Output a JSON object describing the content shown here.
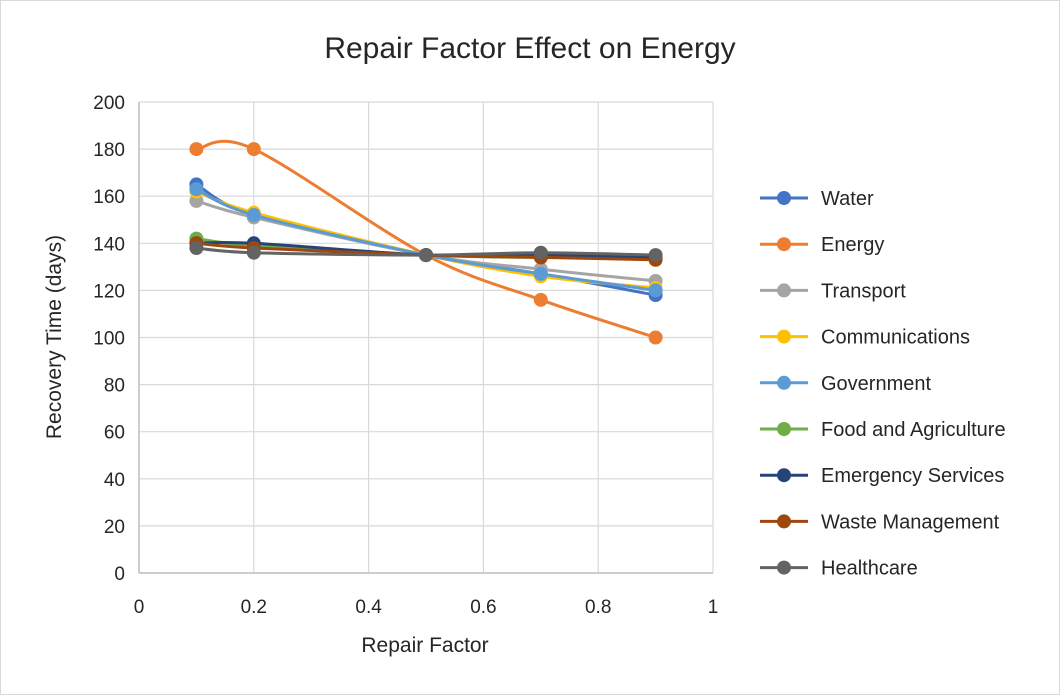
{
  "chart_data": {
    "type": "line",
    "title": "Repair Factor Effect on Energy",
    "xlabel": "Repair Factor",
    "ylabel": "Recovery Time (days)",
    "xlim": [
      0,
      1
    ],
    "ylim": [
      0,
      200
    ],
    "xticks": [
      0,
      0.2,
      0.4,
      0.6,
      0.8,
      1
    ],
    "xtick_labels": [
      "0",
      "0.2",
      "0.4",
      "0.6",
      "0.8",
      "1"
    ],
    "yticks": [
      0,
      20,
      40,
      60,
      80,
      100,
      120,
      140,
      160,
      180,
      200
    ],
    "ytick_labels": [
      "0",
      "20",
      "40",
      "60",
      "80",
      "100",
      "120",
      "140",
      "160",
      "180",
      "200"
    ],
    "grid": true,
    "legend_position": "right",
    "x": [
      0.1,
      0.2,
      0.5,
      0.7,
      0.9
    ],
    "series": [
      {
        "name": "Water",
        "color": "#4472c4",
        "values": [
          165,
          152,
          135,
          127,
          118
        ]
      },
      {
        "name": "Energy",
        "color": "#ed7d31",
        "values": [
          180,
          180,
          135,
          116,
          100
        ]
      },
      {
        "name": "Transport",
        "color": "#a5a5a5",
        "values": [
          158,
          151,
          135,
          129,
          124
        ]
      },
      {
        "name": "Communications",
        "color": "#ffc000",
        "values": [
          162,
          153,
          135,
          126,
          121
        ]
      },
      {
        "name": "Government",
        "color": "#5b9bd5",
        "values": [
          163,
          152,
          135,
          127,
          120
        ]
      },
      {
        "name": "Food and Agriculture",
        "color": "#70ad47",
        "values": [
          142,
          139,
          135,
          134,
          134
        ]
      },
      {
        "name": "Emergency Services",
        "color": "#264478",
        "values": [
          140,
          140,
          135,
          135,
          134
        ]
      },
      {
        "name": "Waste Management",
        "color": "#9e480e",
        "values": [
          140,
          138,
          135,
          134,
          133
        ]
      },
      {
        "name": "Healthcare",
        "color": "#636363",
        "values": [
          138,
          136,
          135,
          136,
          135
        ]
      }
    ]
  }
}
